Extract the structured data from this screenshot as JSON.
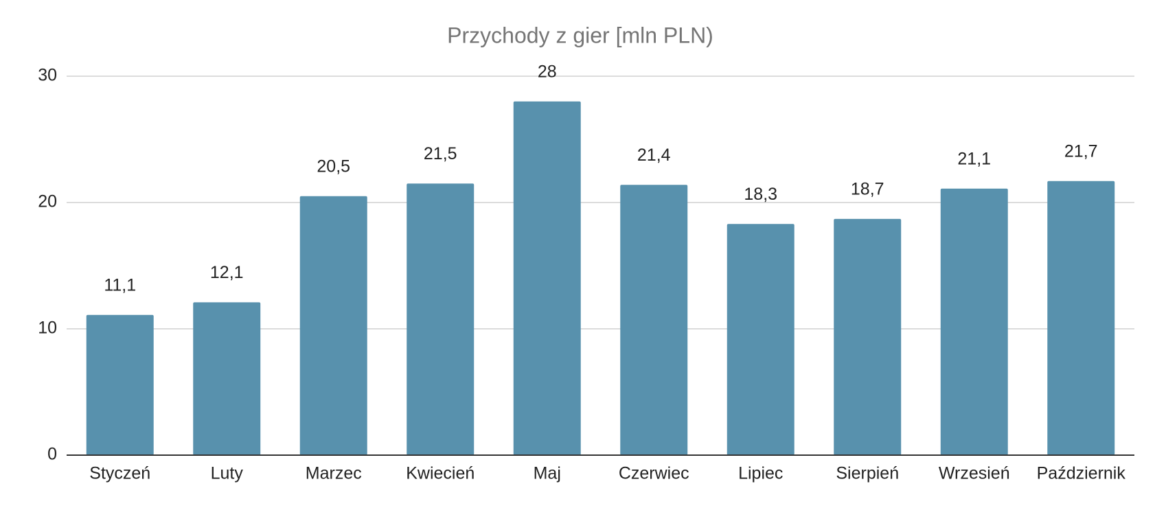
{
  "chart_data": {
    "type": "bar",
    "title": "Przychody z gier [mln PLN)",
    "categories": [
      "Styczeń",
      "Luty",
      "Marzec",
      "Kwiecień",
      "Maj",
      "Czerwiec",
      "Lipiec",
      "Sierpień",
      "Wrzesień",
      "Październik"
    ],
    "values": [
      11.1,
      12.1,
      20.5,
      21.5,
      28,
      21.4,
      18.3,
      18.7,
      21.1,
      21.7
    ],
    "value_labels": [
      "11,1",
      "12,1",
      "20,5",
      "21,5",
      "28",
      "21,4",
      "18,3",
      "18,7",
      "21,1",
      "21,7"
    ],
    "color": "#5891ad",
    "ylim": [
      0,
      30
    ],
    "yticks": [
      0,
      10,
      20,
      30
    ],
    "grid": true
  }
}
